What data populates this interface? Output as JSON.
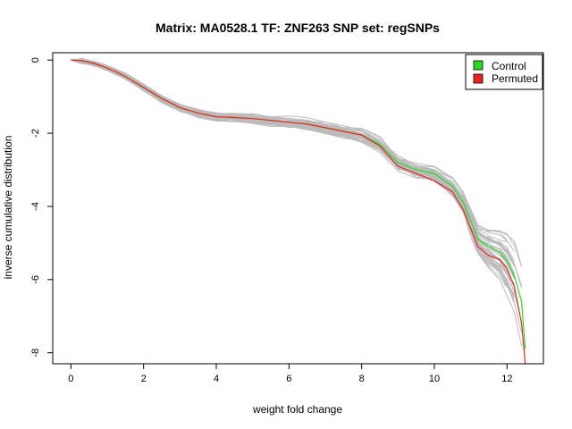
{
  "chart_data": {
    "type": "line",
    "title": "Matrix: MA0528.1 TF: ZNF263 SNP set: regSNPs",
    "xlabel": "weight fold change",
    "ylabel": "inverse cumulative distribution",
    "xlim": [
      -0.5,
      13.0
    ],
    "ylim": [
      -8.3,
      0.2
    ],
    "x_ticks": [
      0,
      2,
      4,
      6,
      8,
      10,
      12
    ],
    "x_tick_labels": [
      "0",
      "2",
      "4",
      "6",
      "8",
      "10",
      "12"
    ],
    "y_ticks": [
      0,
      -2,
      -4,
      -6,
      -8
    ],
    "y_tick_labels": [
      "0",
      "-2",
      "-4",
      "-6",
      "-8"
    ],
    "legend_position": "top-right",
    "legend": [
      {
        "label": "Control",
        "color": "#22dd22"
      },
      {
        "label": "Permuted",
        "color": "#ee2222"
      }
    ],
    "background_series_color": "#bbbbbb",
    "background_series_count": 40,
    "series": [
      {
        "name": "Control",
        "color": "#22dd22",
        "x": [
          0,
          0.3,
          0.6,
          0.9,
          1.2,
          1.5,
          2.0,
          2.5,
          3.0,
          3.5,
          4.0,
          4.5,
          5.0,
          5.5,
          6.0,
          6.5,
          7.0,
          7.5,
          8.0,
          8.5,
          9.0,
          9.5,
          10.0,
          10.5,
          10.8,
          11.0,
          11.2,
          11.5,
          11.8,
          12.0,
          12.2,
          12.4,
          12.5
        ],
        "y": [
          0,
          -0.02,
          -0.08,
          -0.18,
          -0.3,
          -0.45,
          -0.75,
          -1.05,
          -1.3,
          -1.45,
          -1.55,
          -1.57,
          -1.6,
          -1.65,
          -1.7,
          -1.75,
          -1.85,
          -1.95,
          -2.05,
          -2.3,
          -2.8,
          -3.0,
          -3.1,
          -3.45,
          -3.9,
          -4.4,
          -4.9,
          -5.1,
          -5.25,
          -5.5,
          -5.9,
          -6.6,
          -7.9
        ]
      },
      {
        "name": "Permuted",
        "color": "#ee2222",
        "x": [
          0,
          0.3,
          0.6,
          0.9,
          1.2,
          1.5,
          2.0,
          2.5,
          3.0,
          3.5,
          4.0,
          4.5,
          5.0,
          5.5,
          6.0,
          6.5,
          7.0,
          7.5,
          8.0,
          8.5,
          9.0,
          9.5,
          10.0,
          10.5,
          10.8,
          11.0,
          11.2,
          11.5,
          11.8,
          12.0,
          12.2,
          12.4,
          12.5
        ],
        "y": [
          0,
          -0.02,
          -0.08,
          -0.18,
          -0.3,
          -0.45,
          -0.75,
          -1.05,
          -1.3,
          -1.45,
          -1.55,
          -1.57,
          -1.6,
          -1.65,
          -1.7,
          -1.75,
          -1.85,
          -1.95,
          -2.05,
          -2.35,
          -2.9,
          -3.1,
          -3.3,
          -3.6,
          -4.1,
          -4.6,
          -5.1,
          -5.35,
          -5.45,
          -5.7,
          -6.2,
          -7.2,
          -8.3
        ]
      }
    ]
  }
}
